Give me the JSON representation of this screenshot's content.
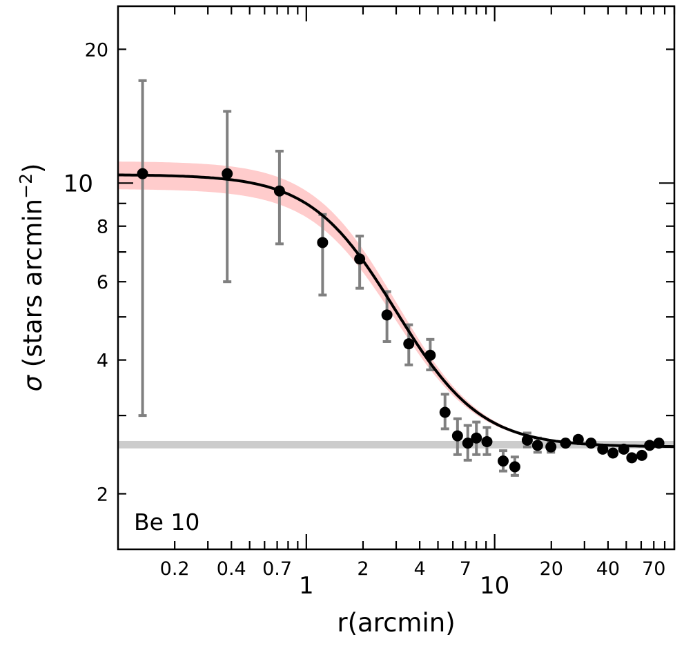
{
  "chart_data": {
    "type": "scatter",
    "title": "",
    "annotation": "Be 10",
    "xlabel": "r(arcmin)",
    "ylabel": "σ (stars arcmin⁻²)",
    "ylabel_parts": {
      "symbol": "σ",
      "text": " (stars arcmin",
      "sup": "−2",
      "close": ")"
    },
    "xscale": "log",
    "yscale": "log",
    "xlim": [
      0.1,
      90
    ],
    "ylim": [
      1.5,
      25
    ],
    "x_ticks_major": [
      {
        "value": 1,
        "label": "1"
      },
      {
        "value": 10,
        "label": "10"
      }
    ],
    "x_ticks_minor": [
      {
        "value": 0.2,
        "label": "0.2"
      },
      {
        "value": 0.4,
        "label": "0.4"
      },
      {
        "value": 0.7,
        "label": "0.7"
      },
      {
        "value": 2,
        "label": "2"
      },
      {
        "value": 4,
        "label": "4"
      },
      {
        "value": 7,
        "label": "7"
      },
      {
        "value": 20,
        "label": "20"
      },
      {
        "value": 40,
        "label": "40"
      },
      {
        "value": 70,
        "label": "70"
      }
    ],
    "x_ticks_minor_unlabeled": [
      0.3,
      0.5,
      0.6,
      0.8,
      0.9,
      3,
      5,
      6,
      8,
      9,
      30,
      50,
      60,
      80,
      90
    ],
    "y_ticks_major": [
      {
        "value": 10,
        "label": "10"
      }
    ],
    "y_ticks_minor": [
      {
        "value": 2,
        "label": "2"
      },
      {
        "value": 4,
        "label": "4"
      },
      {
        "value": 6,
        "label": "6"
      },
      {
        "value": 8,
        "label": "8"
      },
      {
        "value": 20,
        "label": "20"
      }
    ],
    "y_ticks_minor_unlabeled": [
      3,
      5,
      7,
      9
    ],
    "background_band": {
      "low": 2.53,
      "high": 2.63,
      "color": "#cccccc"
    },
    "fit": {
      "model": "King profile",
      "f_bg": 2.55,
      "f0": 7.9,
      "r_core": 2.1,
      "band_halfwidth": 0.75,
      "line_color": "#000000",
      "band_color": "#ffcccc"
    },
    "points": [
      {
        "x": 0.135,
        "y": 10.5,
        "yerr_low": 3.0,
        "yerr_high": 17.0
      },
      {
        "x": 0.38,
        "y": 10.5,
        "yerr_low": 6.0,
        "yerr_high": 14.5
      },
      {
        "x": 0.72,
        "y": 9.6,
        "yerr_low": 7.3,
        "yerr_high": 11.8
      },
      {
        "x": 1.22,
        "y": 7.35,
        "yerr_low": 5.6,
        "yerr_high": 8.5
      },
      {
        "x": 1.92,
        "y": 6.75,
        "yerr_low": 5.8,
        "yerr_high": 7.6
      },
      {
        "x": 2.68,
        "y": 5.05,
        "yerr_low": 4.4,
        "yerr_high": 5.7
      },
      {
        "x": 3.5,
        "y": 4.35,
        "yerr_low": 3.9,
        "yerr_high": 4.8
      },
      {
        "x": 4.55,
        "y": 4.1,
        "yerr_low": 3.8,
        "yerr_high": 4.45
      },
      {
        "x": 5.45,
        "y": 3.05,
        "yerr_low": 2.8,
        "yerr_high": 3.35
      },
      {
        "x": 6.35,
        "y": 2.7,
        "yerr_low": 2.45,
        "yerr_high": 2.95
      },
      {
        "x": 7.2,
        "y": 2.6,
        "yerr_low": 2.38,
        "yerr_high": 2.85
      },
      {
        "x": 8.0,
        "y": 2.67,
        "yerr_low": 2.45,
        "yerr_high": 2.9
      },
      {
        "x": 9.1,
        "y": 2.62,
        "yerr_low": 2.45,
        "yerr_high": 2.82
      },
      {
        "x": 11.1,
        "y": 2.37,
        "yerr_low": 2.25,
        "yerr_high": 2.5
      },
      {
        "x": 12.8,
        "y": 2.3,
        "yerr_low": 2.2,
        "yerr_high": 2.42
      },
      {
        "x": 14.9,
        "y": 2.64,
        "yerr_low": 2.55,
        "yerr_high": 2.74
      },
      {
        "x": 16.9,
        "y": 2.57,
        "yerr_low": 2.48,
        "yerr_high": 2.67
      },
      {
        "x": 19.9,
        "y": 2.55,
        "yerr_low": 2.48,
        "yerr_high": 2.63
      },
      {
        "x": 23.8,
        "y": 2.6
      },
      {
        "x": 27.8,
        "y": 2.65
      },
      {
        "x": 32.5,
        "y": 2.6
      },
      {
        "x": 37.5,
        "y": 2.52
      },
      {
        "x": 42.5,
        "y": 2.47
      },
      {
        "x": 48.5,
        "y": 2.52
      },
      {
        "x": 53.5,
        "y": 2.41
      },
      {
        "x": 60.5,
        "y": 2.44
      },
      {
        "x": 66.5,
        "y": 2.57
      },
      {
        "x": 74.5,
        "y": 2.6
      }
    ],
    "marker_color": "#000000",
    "errorbar_color": "#808080"
  }
}
